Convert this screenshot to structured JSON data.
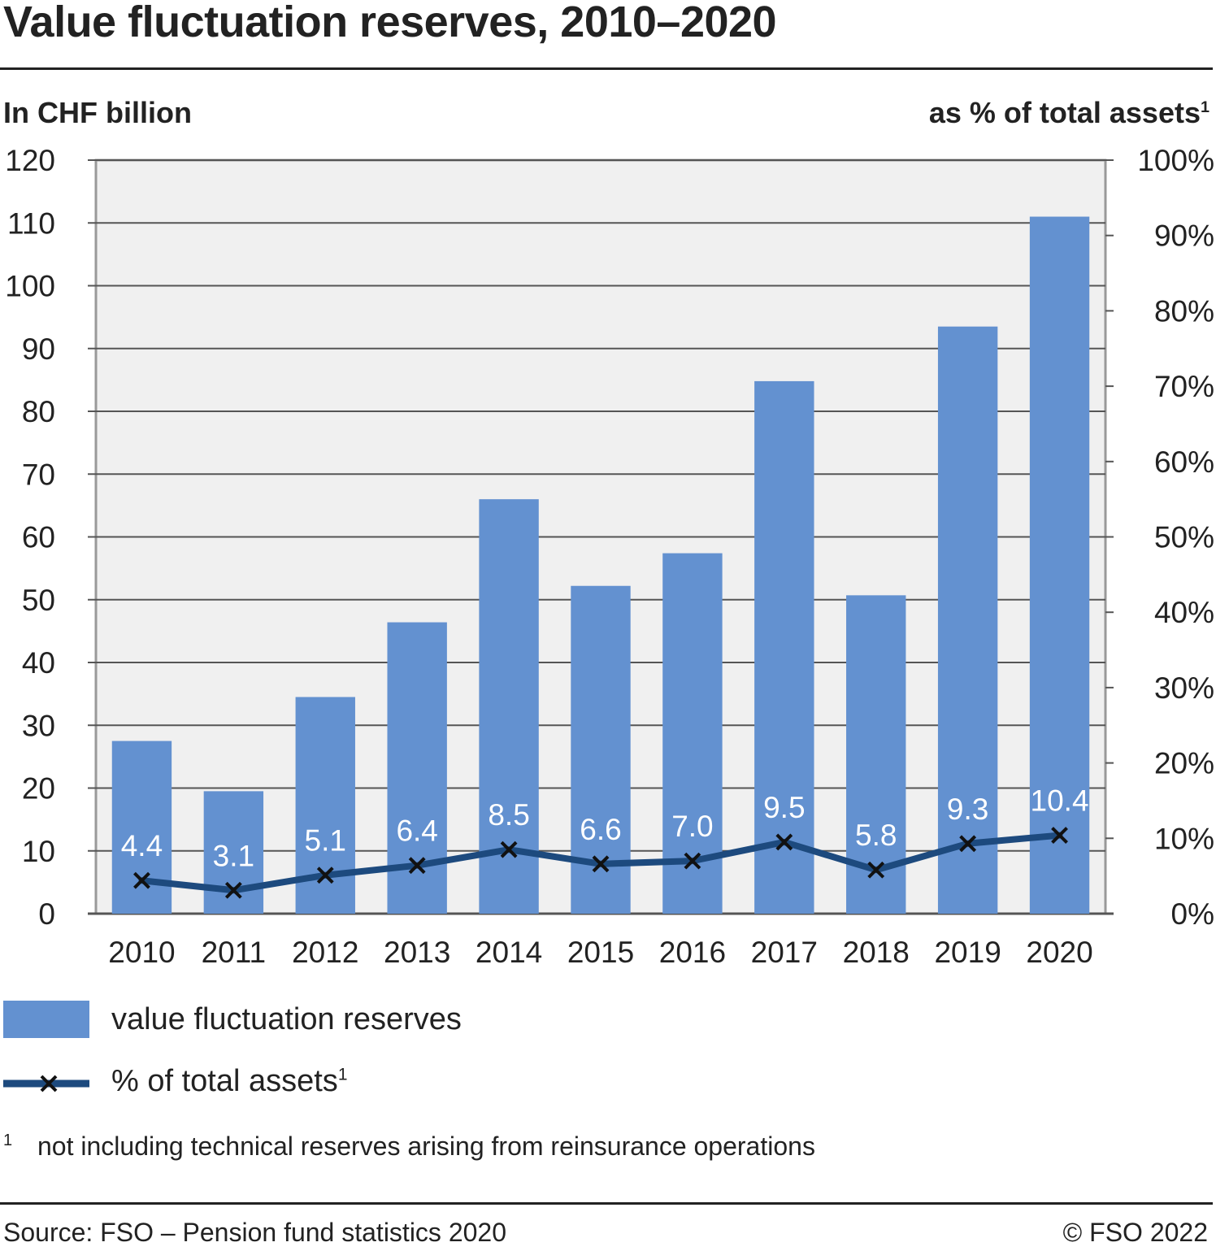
{
  "header": {
    "title": "Value fluctuation reserves, 2010–2020"
  },
  "chart_data": {
    "type": "bar",
    "title": "Value fluctuation reserves, 2010–2020",
    "ylabel_left": "In CHF billion",
    "ylabel_right": "as % of total assets",
    "ylabel_right_footnote": "1",
    "categories": [
      "2010",
      "2011",
      "2012",
      "2013",
      "2014",
      "2015",
      "2016",
      "2017",
      "2018",
      "2019",
      "2020"
    ],
    "series": [
      {
        "name": "value fluctuation reserves",
        "type": "bar",
        "axis": "left",
        "values": [
          27.5,
          19.5,
          34.5,
          46.4,
          66.0,
          52.2,
          57.4,
          84.8,
          50.7,
          93.5,
          111.0
        ],
        "color": "#6391d0"
      },
      {
        "name": "% of total assets",
        "type": "line",
        "axis": "right",
        "values": [
          4.4,
          3.1,
          5.1,
          6.4,
          8.5,
          6.6,
          7.0,
          9.5,
          5.8,
          9.3,
          10.4
        ],
        "labels": [
          "4.4",
          "3.1",
          "5.1",
          "6.4",
          "8.5",
          "6.6",
          "7.0",
          "9.5",
          "5.8",
          "9.3",
          "10.4"
        ],
        "color": "#1d4a7e",
        "marker": "x"
      }
    ],
    "ylim_left": [
      0,
      120
    ],
    "ylim_right": [
      0,
      100
    ],
    "yticks_left": [
      "0",
      "10",
      "20",
      "30",
      "40",
      "50",
      "60",
      "70",
      "80",
      "90",
      "100",
      "110",
      "120"
    ],
    "yticks_right": [
      "0%",
      "10%",
      "20%",
      "30%",
      "40%",
      "50%",
      "60%",
      "70%",
      "80%",
      "90%",
      "100%"
    ],
    "grid": true,
    "legend_position": "bottom",
    "plot_background": "#f0f0f0"
  },
  "legend": {
    "bar_label": "value fluctuation reserves",
    "line_label": "% of total assets",
    "line_footnote": "1"
  },
  "footnote": {
    "number": "1",
    "text": "not including technical reserves arising from reinsurance operations"
  },
  "footer": {
    "source": "Source: FSO – Pension fund statistics 2020",
    "copyright": "© FSO 2022"
  }
}
